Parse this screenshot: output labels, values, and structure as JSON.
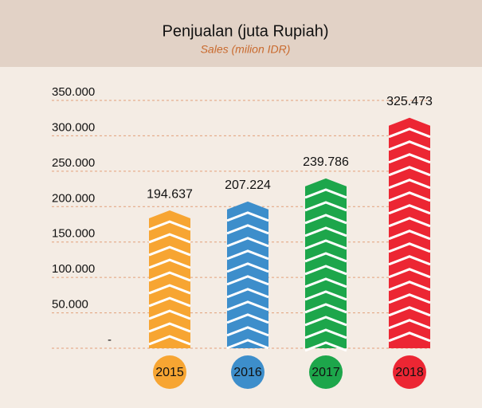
{
  "chart_data": {
    "type": "bar",
    "title": "Penjualan (juta Rupiah)",
    "subtitle": "Sales (milion IDR)",
    "categories": [
      "2015",
      "2016",
      "2017",
      "2018"
    ],
    "values": [
      194637,
      207224,
      239786,
      325473
    ],
    "value_labels": [
      "194.637",
      "207.224",
      "239.786",
      "325.473"
    ],
    "colors": [
      "#f7a532",
      "#3d8ecb",
      "#1da64b",
      "#ec2633"
    ],
    "ylim": [
      0,
      350000
    ],
    "yticks": [
      {
        "value": 0,
        "label": "-"
      },
      {
        "value": 50000,
        "label": "50.000"
      },
      {
        "value": 100000,
        "label": "100.000"
      },
      {
        "value": 150000,
        "label": "150.000"
      },
      {
        "value": 200000,
        "label": "200.000"
      },
      {
        "value": 250000,
        "label": "250.000"
      },
      {
        "value": 300000,
        "label": "300.000"
      },
      {
        "value": 350000,
        "label": "350.000"
      }
    ],
    "grid": true
  }
}
